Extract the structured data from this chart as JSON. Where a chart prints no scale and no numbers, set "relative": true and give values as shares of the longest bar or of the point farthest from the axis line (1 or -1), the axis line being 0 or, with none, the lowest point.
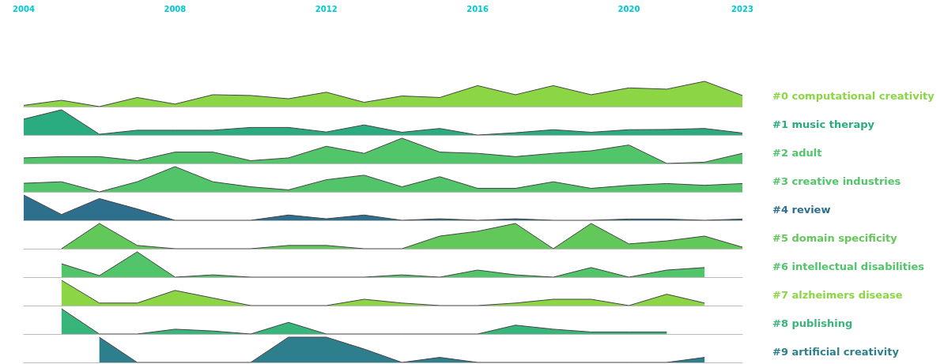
{
  "chart_data": [
    {
      "type": "area",
      "relative": true,
      "x": [
        2004,
        2005,
        2006,
        2007,
        2008,
        2009,
        2010,
        2011,
        2012,
        2013,
        2014,
        2015,
        2016,
        2017,
        2018,
        2019,
        2020,
        2021,
        2022,
        2023
      ],
      "xlim": [
        2004,
        2023
      ],
      "xticks": [
        2004,
        2008,
        2012,
        2016,
        2020,
        2023
      ],
      "tick_labels": "x",
      "series": [
        {
          "name": "#0 computational creativity",
          "color": "#8cd646",
          "values": [
            0.05,
            0.25,
            0,
            0.36,
            0.1,
            0.47,
            0.44,
            0.31,
            0.57,
            0.17,
            0.42,
            0.36,
            0.83,
            0.47,
            0.83,
            0.47,
            0.74,
            0.69,
            1,
            0.44
          ]
        }
      ]
    },
    {
      "type": "area",
      "relative": true,
      "x": [
        2004,
        2005,
        2006,
        2007,
        2008,
        2009,
        2010,
        2011,
        2012,
        2013,
        2014,
        2015,
        2016,
        2017,
        2018,
        2019,
        2020,
        2021,
        2022,
        2023
      ],
      "xlim": [
        2004,
        2023
      ],
      "tick_labels": false,
      "series": [
        {
          "name": "#1 music therapy",
          "color": "#2aab80",
          "values": [
            0.63,
            1,
            0.03,
            0.19,
            0.19,
            0.19,
            0.3,
            0.3,
            0.12,
            0.4,
            0.11,
            0.26,
            0,
            0.09,
            0.21,
            0.11,
            0.21,
            0.22,
            0.26,
            0.08
          ]
        }
      ]
    },
    {
      "type": "area",
      "relative": true,
      "x": [
        2004,
        2005,
        2006,
        2007,
        2008,
        2009,
        2010,
        2011,
        2012,
        2013,
        2014,
        2015,
        2016,
        2017,
        2018,
        2019,
        2020,
        2021,
        2022,
        2023
      ],
      "xlim": [
        2004,
        2023
      ],
      "tick_labels": false,
      "series": [
        {
          "name": "#2 adult",
          "color": "#52c46a",
          "values": [
            0.22,
            0.27,
            0.27,
            0.11,
            0.45,
            0.45,
            0.11,
            0.22,
            0.68,
            0.4,
            1,
            0.45,
            0.4,
            0.27,
            0.4,
            0.5,
            0.73,
            0,
            0.05,
            0.4
          ]
        }
      ]
    },
    {
      "type": "area",
      "relative": true,
      "x": [
        2004,
        2005,
        2006,
        2007,
        2008,
        2009,
        2010,
        2011,
        2012,
        2013,
        2014,
        2015,
        2016,
        2017,
        2018,
        2019,
        2020,
        2021,
        2022,
        2023
      ],
      "xlim": [
        2004,
        2023
      ],
      "tick_labels": false,
      "series": [
        {
          "name": "#3 creative industries",
          "color": "#52c46a",
          "values": [
            0.34,
            0.4,
            0,
            0.4,
            1,
            0.4,
            0.2,
            0.08,
            0.48,
            0.66,
            0.2,
            0.6,
            0.14,
            0.14,
            0.4,
            0.14,
            0.26,
            0.33,
            0.26,
            0.33
          ]
        }
      ]
    },
    {
      "type": "area",
      "relative": true,
      "x": [
        2004,
        2005,
        2006,
        2007,
        2008,
        2009,
        2010,
        2011,
        2012,
        2013,
        2014,
        2015,
        2016,
        2017,
        2018,
        2019,
        2020,
        2021,
        2022,
        2023
      ],
      "xlim": [
        2004,
        2023
      ],
      "tick_labels": false,
      "series": [
        {
          "name": "#4 review",
          "color": "#2e6f8e",
          "values": [
            1,
            0.23,
            0.86,
            0.45,
            0,
            0,
            0,
            0.21,
            0.06,
            0.21,
            0,
            0.06,
            0,
            0.06,
            0,
            0,
            0.05,
            0.05,
            0,
            0.05
          ]
        }
      ]
    },
    {
      "type": "area",
      "relative": true,
      "x": [
        2005,
        2006,
        2007,
        2008,
        2009,
        2010,
        2011,
        2012,
        2013,
        2014,
        2015,
        2016,
        2017,
        2018,
        2019,
        2020,
        2021,
        2022,
        2023
      ],
      "xlim": [
        2004,
        2023
      ],
      "tick_labels": false,
      "series": [
        {
          "name": "#5 domain specificity",
          "color": "#63c85a",
          "values": [
            0,
            1,
            0.13,
            0,
            0,
            0,
            0.13,
            0.13,
            0,
            0,
            0.5,
            0.69,
            1,
            0,
            1,
            0.19,
            0.31,
            0.5,
            0.06
          ]
        }
      ]
    },
    {
      "type": "area",
      "relative": true,
      "x": [
        2005,
        2006,
        2007,
        2008,
        2009,
        2010,
        2011,
        2012,
        2013,
        2014,
        2015,
        2016,
        2017,
        2018,
        2019,
        2020,
        2021,
        2022
      ],
      "xlim": [
        2004,
        2023
      ],
      "tick_labels": false,
      "series": [
        {
          "name": "#6 intellectual disabilities",
          "color": "#52c46a",
          "values": [
            0.53,
            0.06,
            1,
            0,
            0.09,
            0,
            0,
            0,
            0,
            0.09,
            0,
            0.28,
            0.09,
            0,
            0.38,
            0,
            0.28,
            0.38
          ]
        }
      ]
    },
    {
      "type": "area",
      "relative": true,
      "x": [
        2005,
        2006,
        2007,
        2008,
        2009,
        2010,
        2011,
        2012,
        2013,
        2014,
        2015,
        2016,
        2017,
        2018,
        2019,
        2020,
        2021,
        2022
      ],
      "xlim": [
        2004,
        2023
      ],
      "tick_labels": false,
      "series": [
        {
          "name": "#7 alzheimers disease",
          "color": "#8cd646",
          "values": [
            1,
            0.1,
            0.1,
            0.6,
            0.3,
            0,
            0,
            0,
            0.25,
            0.1,
            0,
            0,
            0.1,
            0.25,
            0.25,
            0,
            0.45,
            0.1
          ]
        }
      ]
    },
    {
      "type": "area",
      "relative": true,
      "x": [
        2005,
        2006,
        2007,
        2008,
        2009,
        2010,
        2011,
        2012,
        2013,
        2014,
        2015,
        2016,
        2017,
        2018,
        2019,
        2020,
        2021
      ],
      "xlim": [
        2004,
        2023
      ],
      "tick_labels": false,
      "series": [
        {
          "name": "#8 publishing",
          "color": "#38b57a",
          "values": [
            1,
            0,
            0,
            0.19,
            0.12,
            0,
            0.46,
            0,
            0,
            0,
            0,
            0,
            0.35,
            0.19,
            0.08,
            0.08,
            0.08
          ]
        }
      ]
    },
    {
      "type": "area",
      "relative": true,
      "x": [
        2006,
        2007,
        2008,
        2009,
        2010,
        2011,
        2012,
        2013,
        2014,
        2015,
        2016,
        2017,
        2018,
        2019,
        2020,
        2021,
        2022
      ],
      "xlim": [
        2004,
        2023
      ],
      "tick_labels": false,
      "series": [
        {
          "name": "#9 artificial creativity",
          "color": "#2e7f8e",
          "values": [
            1,
            0,
            0,
            0,
            0,
            1,
            1,
            0.53,
            0,
            0.2,
            0,
            0,
            0,
            0,
            0,
            0,
            0.2
          ]
        }
      ]
    }
  ]
}
